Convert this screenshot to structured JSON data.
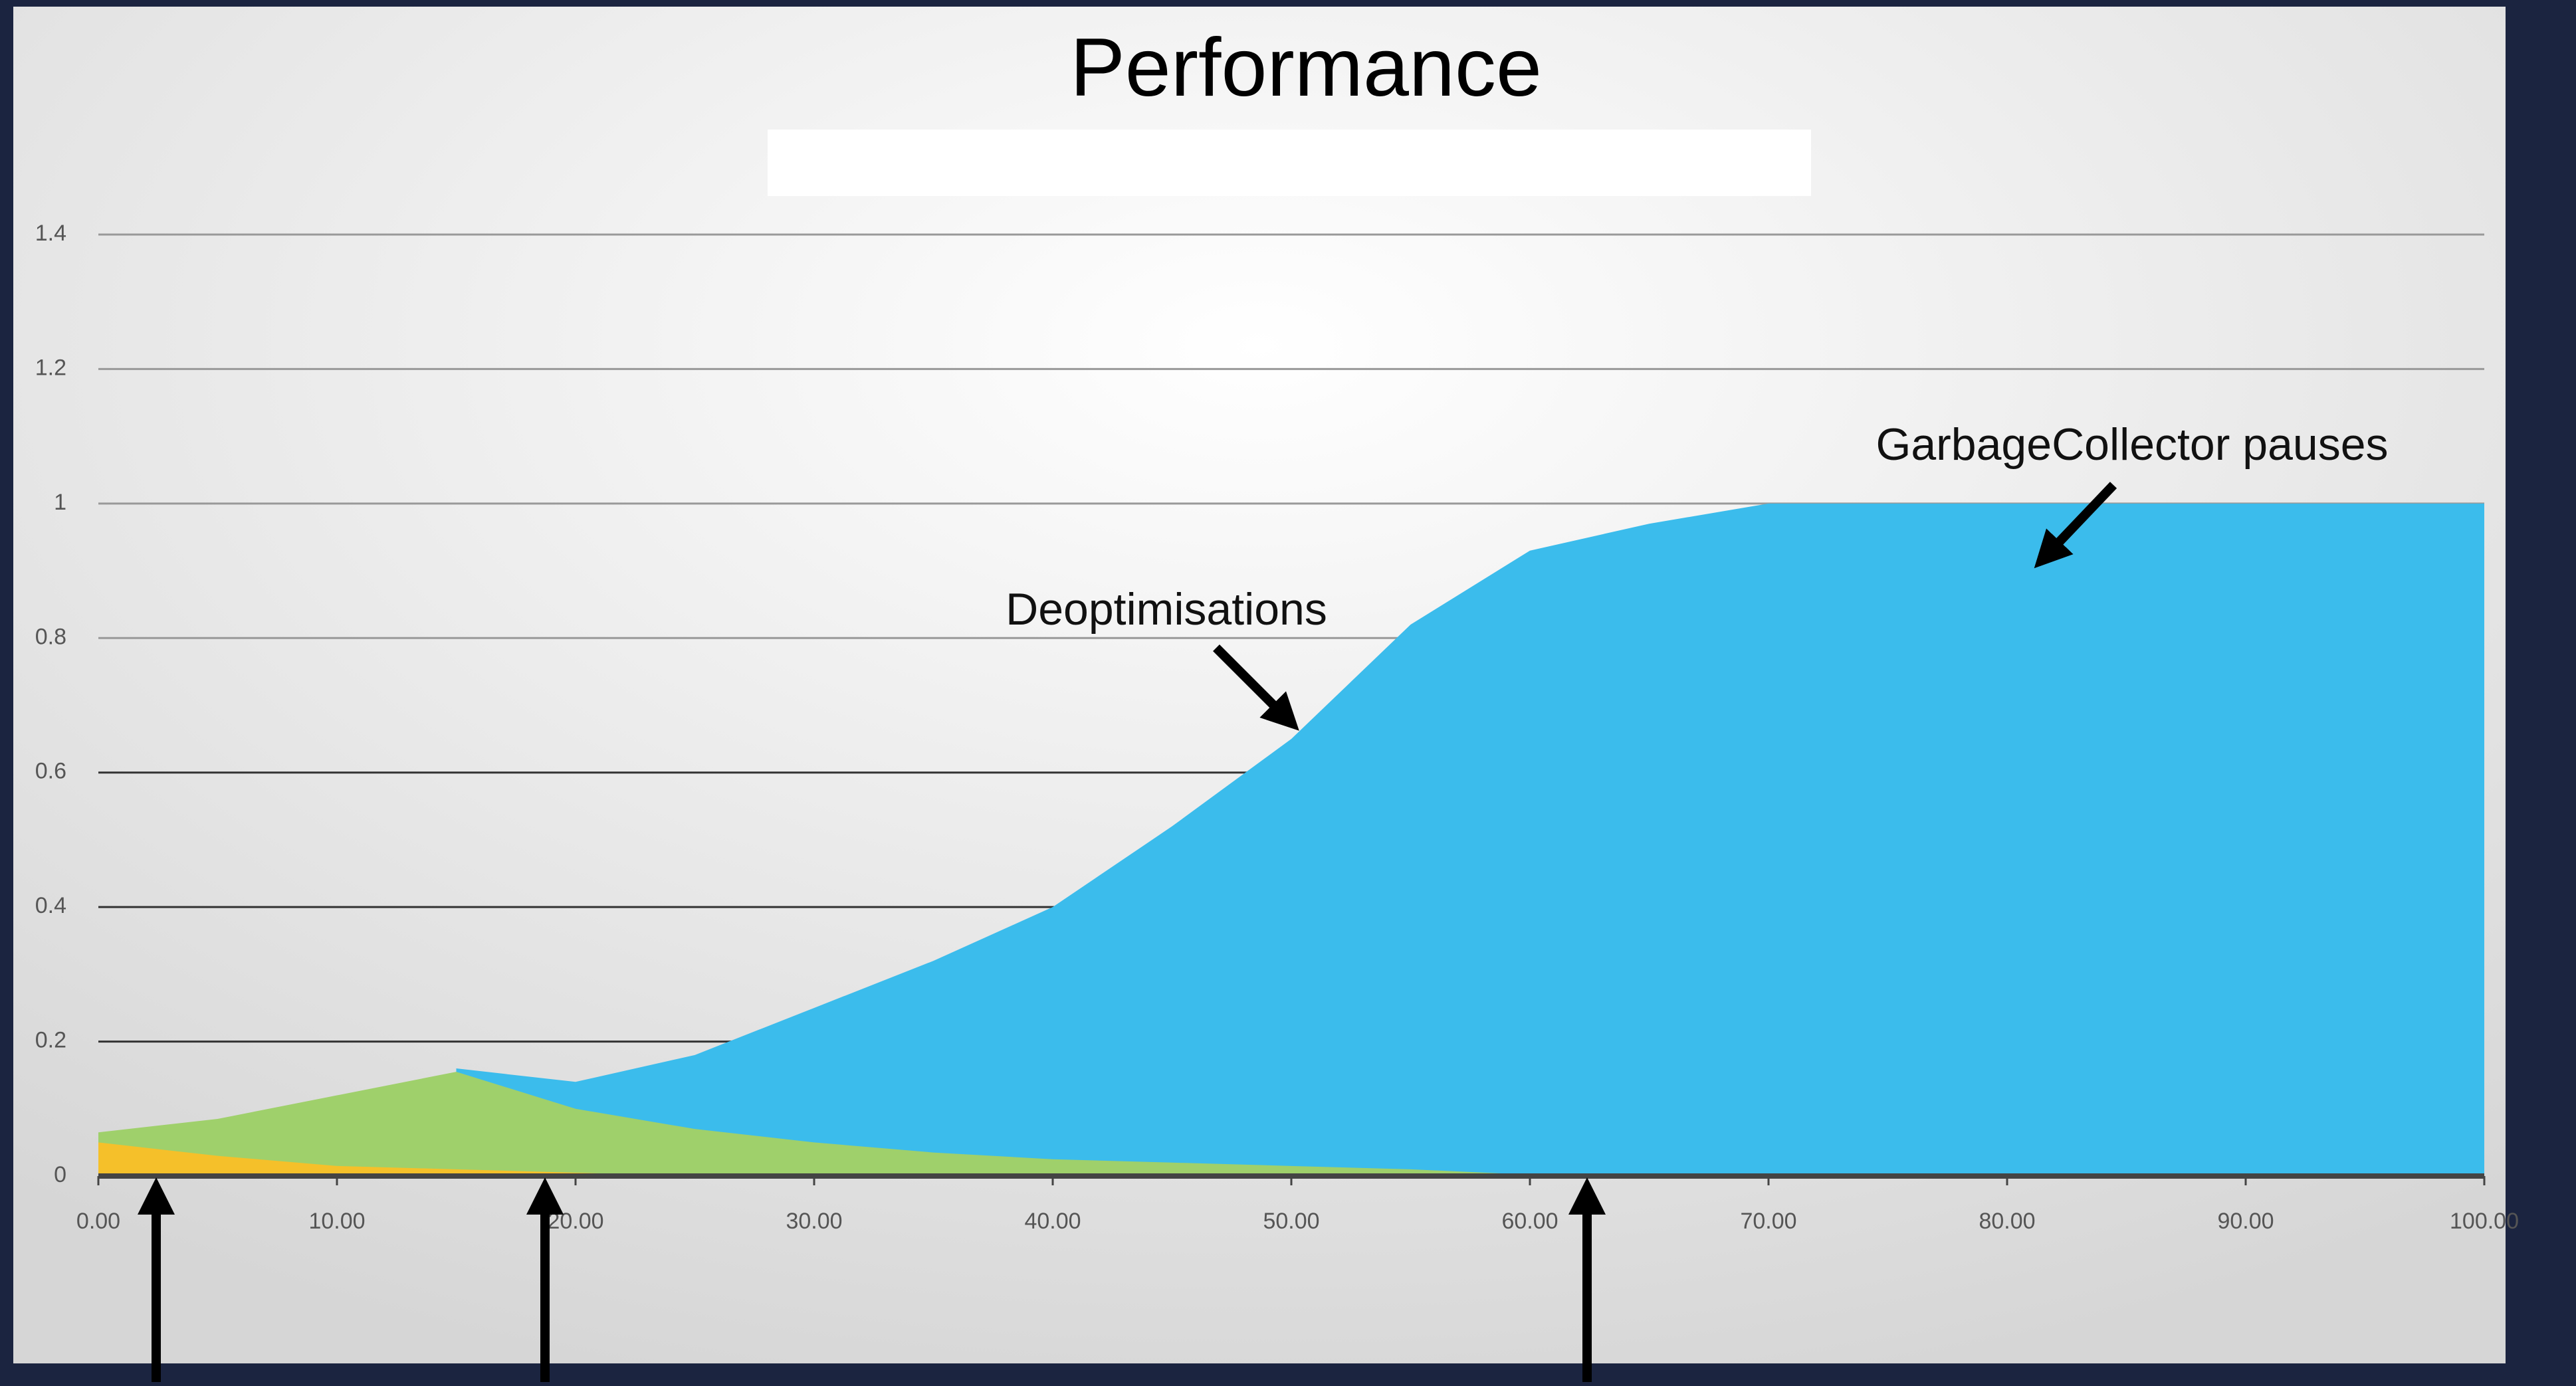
{
  "chart_data": {
    "type": "area",
    "title": "Performance",
    "annotations": [
      "Deoptimisations",
      "GarbageCollector pauses"
    ],
    "x": [
      0,
      5,
      10,
      15,
      20,
      25,
      30,
      35,
      40,
      45,
      50,
      55,
      60,
      65,
      70,
      75,
      80,
      85,
      90,
      95,
      100
    ],
    "series": [
      {
        "color": "#f5c02a",
        "values": [
          0.05,
          0.03,
          0.015,
          0.01,
          0.005,
          0,
          null,
          null,
          null,
          null,
          null,
          null,
          null,
          null,
          null,
          null,
          null,
          null,
          null,
          null,
          null
        ]
      },
      {
        "color": "#9fd06b",
        "values": [
          0.065,
          0.085,
          0.12,
          0.155,
          0.1,
          0.07,
          0.05,
          0.035,
          0.025,
          0.02,
          0.015,
          0.01,
          0.002,
          null,
          null,
          null,
          null,
          null,
          null,
          null,
          null
        ]
      },
      {
        "color": "#3bbcec",
        "values": [
          null,
          null,
          null,
          0.16,
          0.14,
          0.18,
          0.25,
          0.32,
          0.4,
          0.52,
          0.65,
          0.82,
          0.93,
          0.97,
          1,
          1,
          1,
          1,
          1,
          1,
          1
        ]
      }
    ],
    "xlim": [
      0,
      100
    ],
    "xticks": [
      {
        "value": 0,
        "label": "0.00"
      },
      {
        "value": 10,
        "label": "10.00"
      },
      {
        "value": 20,
        "label": "20.00"
      },
      {
        "value": 30,
        "label": "30.00"
      },
      {
        "value": 40,
        "label": "40.00"
      },
      {
        "value": 50,
        "label": "50.00"
      },
      {
        "value": 60,
        "label": "60.00"
      },
      {
        "value": 70,
        "label": "70.00"
      },
      {
        "value": 80,
        "label": "80.00"
      },
      {
        "value": 90,
        "label": "90.00"
      },
      {
        "value": 100,
        "label": "100.00"
      }
    ],
    "ylim": [
      0,
      1.4
    ],
    "yticks": [
      0,
      0.2,
      0.4,
      0.6,
      0.8,
      1,
      1.2,
      1.4
    ],
    "grid": true
  }
}
